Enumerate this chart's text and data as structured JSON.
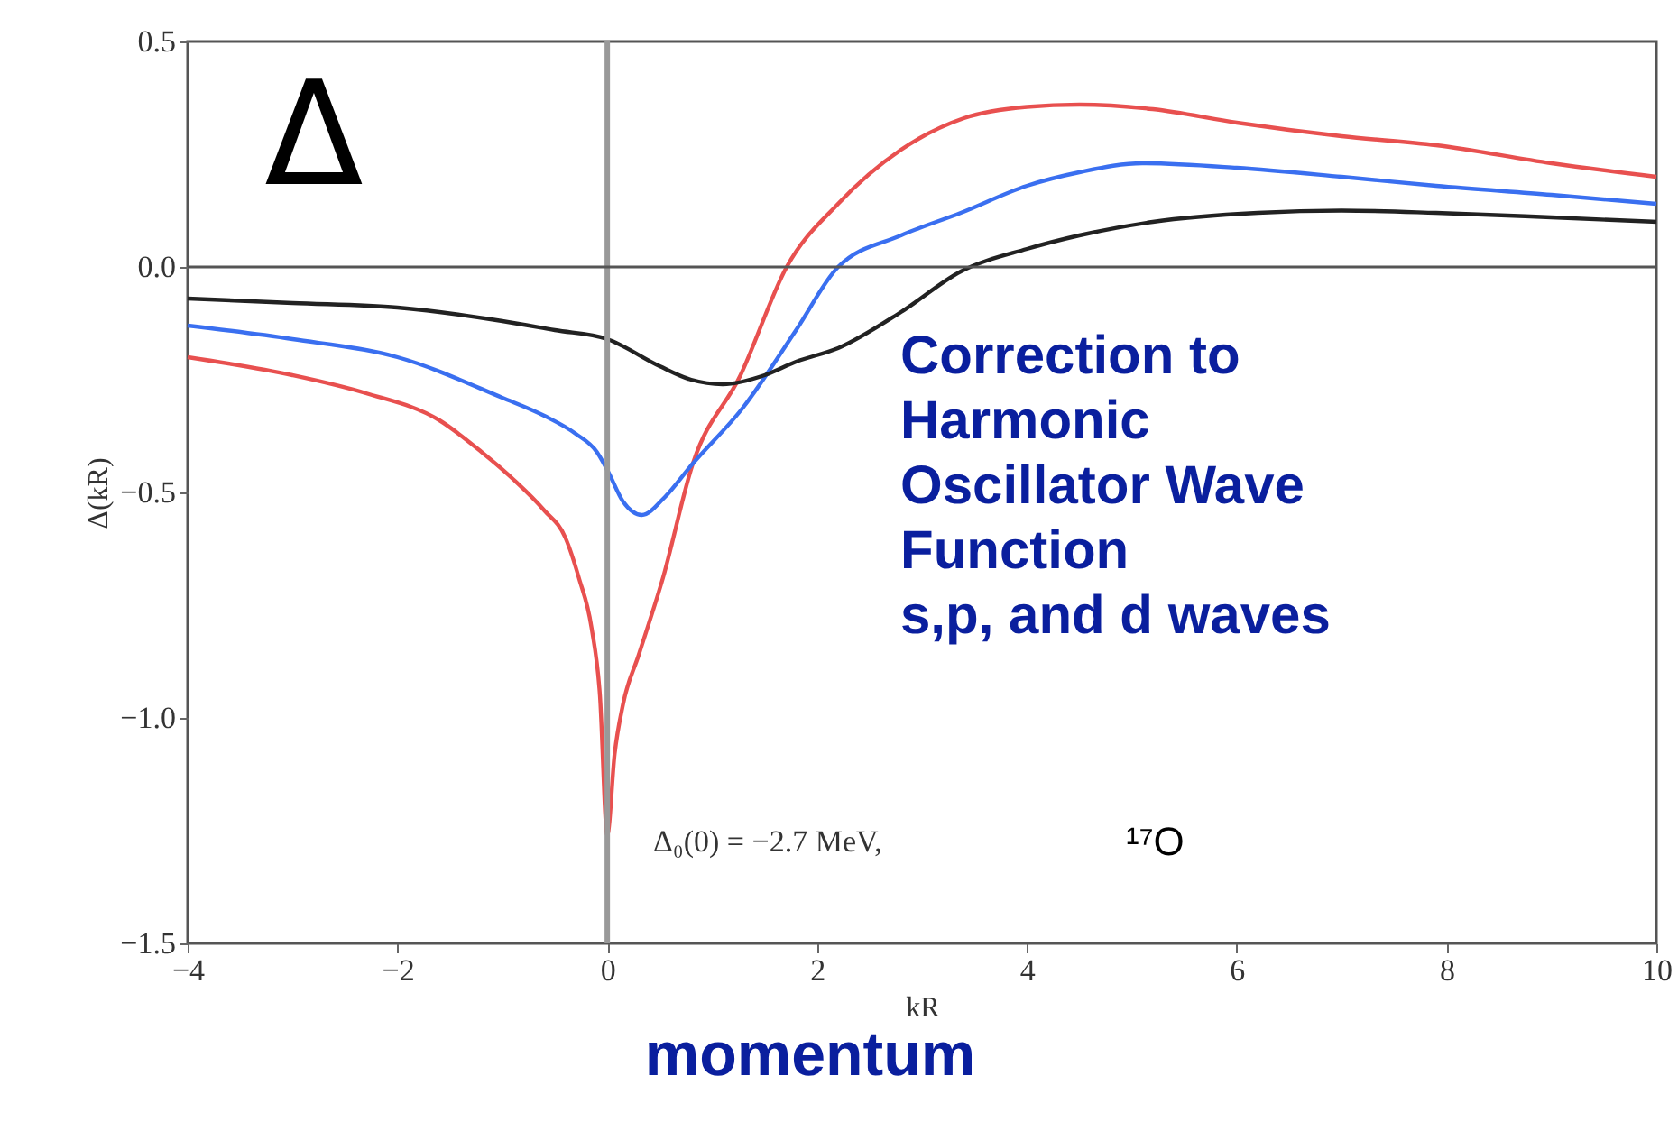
{
  "chart_data": {
    "type": "line",
    "xlabel": "kR",
    "ylabel": "Δ(kR)",
    "xlim": [
      -4,
      10
    ],
    "ylim": [
      -1.5,
      0.5
    ],
    "xticks": [
      {
        "value": -4,
        "label": "−4"
      },
      {
        "value": -2,
        "label": "−2"
      },
      0,
      2,
      4,
      6,
      8,
      10
    ],
    "yticks": [
      {
        "value": -1.5,
        "label": "−1.5"
      },
      {
        "value": -1.0,
        "label": "−1.0"
      },
      {
        "value": -0.5,
        "label": "−0.5"
      },
      {
        "value": 0,
        "label": "0.0"
      },
      {
        "value": 0.5,
        "label": "0.5"
      }
    ],
    "grid": false,
    "marker": "none",
    "line_style": "solid",
    "series": [
      {
        "color": "#e8504f",
        "x": [
          -4,
          -3,
          -2.3,
          -1.6,
          -1.2,
          -0.9,
          -0.6,
          -0.4,
          -0.27,
          -0.15,
          -0.07,
          0,
          0.07,
          0.15,
          0.3,
          0.53,
          0.81,
          1.27,
          1.71,
          2.2,
          2.8,
          3.4,
          4,
          4.5,
          5.2,
          6,
          7,
          7.9,
          9,
          10
        ],
        "values": [
          -0.2,
          -0.24,
          -0.28,
          -0.34,
          -0.41,
          -0.47,
          -0.54,
          -0.6,
          -0.69,
          -0.8,
          -0.95,
          -1.26,
          -1.08,
          -0.97,
          -0.86,
          -0.69,
          -0.44,
          -0.24,
          0,
          0.14,
          0.26,
          0.33,
          0.355,
          0.36,
          0.35,
          0.32,
          0.29,
          0.27,
          0.23,
          0.2
        ]
      },
      {
        "color": "#3a6ff0",
        "x": [
          -4,
          -3,
          -2,
          -1,
          -0.6,
          -0.3,
          -0.1,
          0,
          0.15,
          0.33,
          0.55,
          0.8,
          1.3,
          1.8,
          2.2,
          2.8,
          3.37,
          4,
          4.5,
          5.1,
          6,
          7,
          7.9,
          9,
          10
        ],
        "values": [
          -0.13,
          -0.16,
          -0.2,
          -0.29,
          -0.33,
          -0.37,
          -0.41,
          -0.45,
          -0.52,
          -0.55,
          -0.51,
          -0.44,
          -0.31,
          -0.14,
          0,
          0.07,
          0.12,
          0.18,
          0.21,
          0.23,
          0.22,
          0.2,
          0.18,
          0.16,
          0.14
        ]
      },
      {
        "color": "#222222",
        "x": [
          -4,
          -3,
          -2,
          -1,
          -0.5,
          0,
          0.5,
          0.8,
          1.1,
          1.5,
          1.8,
          2.2,
          2.8,
          3.37,
          4,
          4.5,
          5.2,
          6.2,
          7,
          7.9,
          9,
          10
        ],
        "values": [
          -0.07,
          -0.08,
          -0.09,
          -0.12,
          -0.14,
          -0.16,
          -0.22,
          -0.25,
          -0.26,
          -0.24,
          -0.21,
          -0.18,
          -0.1,
          -0.01,
          0.04,
          0.07,
          0.1,
          0.12,
          0.125,
          0.12,
          0.11,
          0.1
        ]
      }
    ],
    "ref_lines": [
      {
        "axis": "x",
        "value": 0,
        "color": "#999999"
      },
      {
        "axis": "y",
        "value": 0,
        "color": "#555555"
      }
    ],
    "annotations": [
      "Δ",
      "Correction to\nHarmonic\nOscillator Wave\nFunction\ns,p, and d waves",
      "Δ₀(0) = −2.7 MeV,",
      "¹⁷O",
      "momentum"
    ]
  }
}
